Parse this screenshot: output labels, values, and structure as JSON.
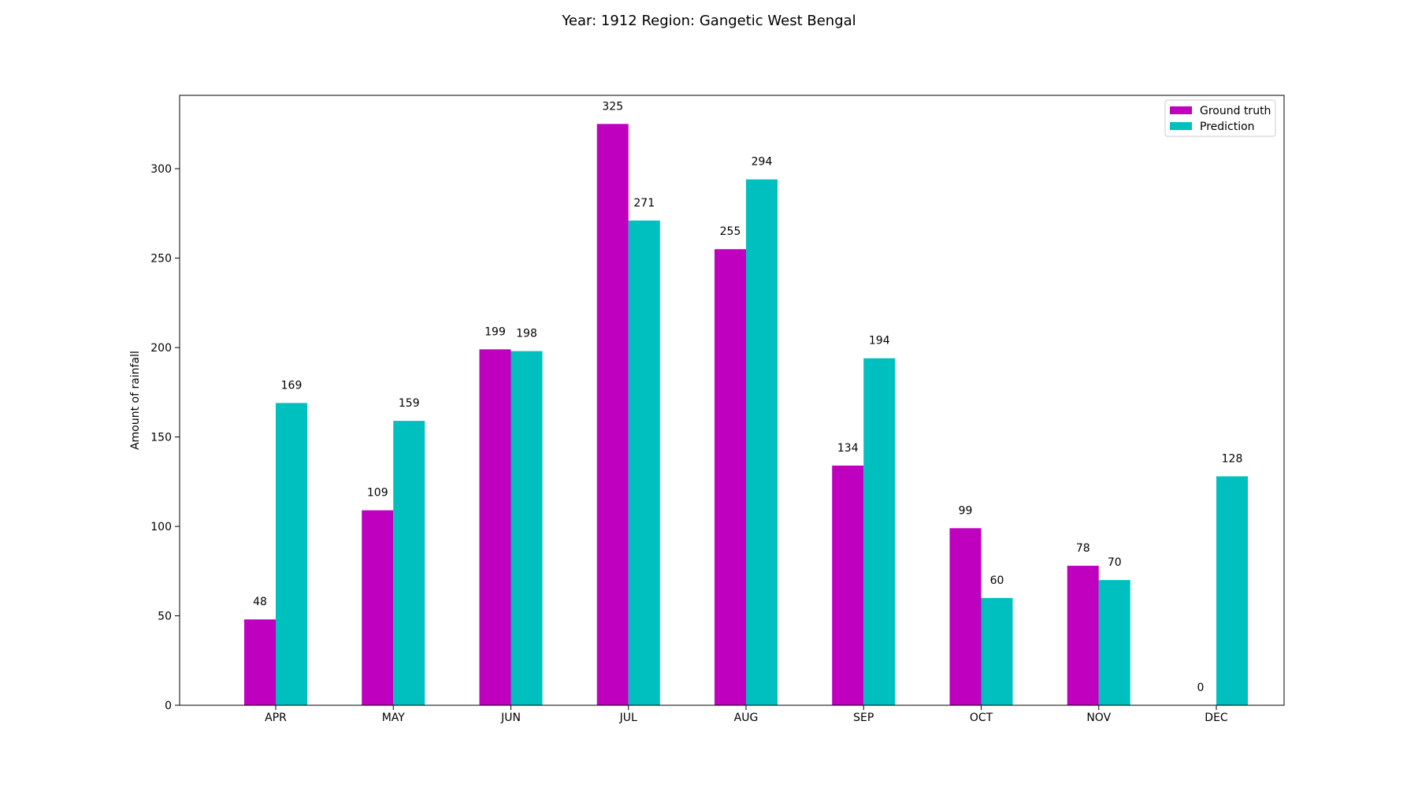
{
  "chart_data": {
    "type": "bar",
    "title": "Year: 1912  Region: Gangetic West Bengal",
    "xlabel": "",
    "ylabel": "Amount of rainfall",
    "categories": [
      "APR",
      "MAY",
      "JUN",
      "JUL",
      "AUG",
      "SEP",
      "OCT",
      "NOV",
      "DEC"
    ],
    "series": [
      {
        "name": "Ground truth",
        "color": "#bf00bf",
        "values": [
          48,
          109,
          199,
          325,
          255,
          134,
          99,
          78,
          0
        ]
      },
      {
        "name": "Prediction",
        "color": "#00bfbf",
        "values": [
          169,
          159,
          198,
          271,
          294,
          194,
          60,
          70,
          128
        ]
      }
    ],
    "ylim": [
      0,
      341
    ],
    "yticks": [
      0,
      50,
      100,
      150,
      200,
      250,
      300
    ],
    "grid": false,
    "legend_position": "top-right"
  }
}
